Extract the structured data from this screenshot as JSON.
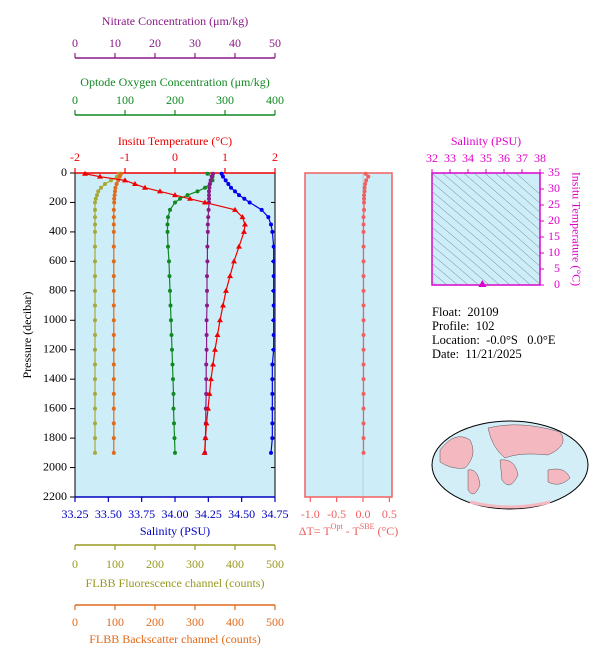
{
  "chart_data": [
    {
      "type": "profile",
      "ylabel": "Pressure (decibar)",
      "ylim": [
        0,
        2200
      ],
      "y_inverted": true,
      "yticks": [
        0,
        200,
        400,
        600,
        800,
        1000,
        1200,
        1400,
        1600,
        1800,
        2000,
        2200
      ],
      "pressure": [
        5,
        25,
        50,
        75,
        100,
        125,
        150,
        175,
        200,
        250,
        300,
        350,
        400,
        500,
        600,
        700,
        800,
        900,
        1000,
        1100,
        1200,
        1300,
        1400,
        1500,
        1600,
        1700,
        1800,
        1900
      ],
      "axes": [
        {
          "label": "Insitu Temperature (°C)",
          "color": "#ee0000",
          "xlim": [
            -2,
            2
          ],
          "xticks": [
            -2,
            -1,
            0,
            1,
            2
          ]
        },
        {
          "label": "Salinity (PSU)",
          "color": "#0000c0",
          "xlim": [
            33.25,
            34.75
          ],
          "xticks": [
            {
              "value": 33.25,
              "label": "33.25"
            },
            {
              "value": 33.5,
              "label": "33.50"
            },
            {
              "value": 33.75,
              "label": "33.75"
            },
            {
              "value": 34.0,
              "label": "34.00"
            },
            {
              "value": 34.25,
              "label": "34.25"
            },
            {
              "value": 34.5,
              "label": "34.50"
            },
            {
              "value": 34.75,
              "label": "34.75"
            }
          ]
        },
        {
          "label": "Nitrate Concentration (μm/kg)",
          "color": "#8b1a89",
          "xlim": [
            0,
            50
          ],
          "xticks": [
            0,
            10,
            20,
            30,
            40,
            50
          ]
        },
        {
          "label": "Optode Oxygen Concentration (μm/kg)",
          "color": "#118822",
          "xlim": [
            0,
            400
          ],
          "xticks": [
            0,
            100,
            200,
            300,
            400
          ]
        },
        {
          "label": "FLBB Fluorescence channel (counts)",
          "color": "#999922",
          "xlim": [
            0,
            500
          ],
          "xticks": [
            0,
            100,
            200,
            300,
            400,
            500
          ]
        },
        {
          "label": "FLBB Backscatter channel (counts)",
          "color": "#e06a1a",
          "xlim": [
            0,
            500
          ],
          "xticks": [
            0,
            100,
            200,
            300,
            400,
            500
          ]
        }
      ],
      "series": [
        {
          "axis": 4,
          "color": "#a8a838",
          "marker": "circle",
          "values": [
            110,
            105,
            90,
            75,
            65,
            58,
            55,
            52,
            50,
            50,
            50,
            50,
            50,
            50,
            50,
            50,
            50,
            50,
            50,
            50,
            50,
            50,
            50,
            50,
            50,
            50,
            50,
            50
          ]
        },
        {
          "axis": 5,
          "color": "#e06a1a",
          "marker": "circle",
          "values": [
            115,
            112,
            108,
            104,
            101,
            100,
            99,
            98,
            98,
            97,
            97,
            97,
            97,
            97,
            97,
            97,
            97,
            97,
            97,
            97,
            97,
            97,
            97,
            97,
            97,
            97,
            97,
            97
          ]
        },
        {
          "axis": 3,
          "color": "#118822",
          "marker": "circle",
          "values": [
            265,
            275,
            275,
            270,
            260,
            245,
            225,
            210,
            200,
            190,
            186,
            185,
            185,
            186,
            188,
            189,
            190,
            191,
            192,
            193,
            194,
            195,
            196,
            197,
            197,
            198,
            199,
            200
          ]
        },
        {
          "axis": 2,
          "color": "#8b1a89",
          "marker": "circle",
          "values": [
            34.5,
            34.2,
            33.9,
            33.7,
            33.6,
            33.5,
            33.5,
            33.5,
            33.5,
            33.4,
            33.3,
            33.2,
            33.2,
            33.1,
            33.1,
            33.0,
            33.0,
            33.0,
            32.9,
            32.9,
            32.9,
            32.8,
            32.8,
            32.8,
            32.7,
            32.7,
            32.6,
            32.5
          ]
        },
        {
          "axis": 1,
          "color": "#0000ee",
          "marker": "circle",
          "values": [
            34.35,
            34.36,
            34.38,
            34.4,
            34.42,
            34.45,
            34.48,
            34.52,
            34.56,
            34.65,
            34.7,
            34.72,
            34.73,
            34.74,
            34.74,
            34.74,
            34.74,
            34.74,
            34.74,
            34.74,
            34.74,
            34.73,
            34.73,
            34.73,
            34.73,
            34.73,
            34.73,
            34.72
          ]
        },
        {
          "axis": 0,
          "color": "#ee0000",
          "marker": "triangle",
          "values": [
            -1.8,
            -1.5,
            -1.0,
            -0.8,
            -0.6,
            -0.3,
            0.0,
            0.3,
            0.6,
            1.2,
            1.35,
            1.4,
            1.38,
            1.28,
            1.18,
            1.1,
            1.02,
            0.96,
            0.9,
            0.85,
            0.8,
            0.76,
            0.72,
            0.69,
            0.66,
            0.63,
            0.61,
            0.59
          ]
        }
      ]
    },
    {
      "type": "profile",
      "ylim": [
        0,
        2200
      ],
      "y_inverted": true,
      "pressure": [
        5,
        25,
        50,
        75,
        100,
        125,
        150,
        175,
        200,
        250,
        300,
        350,
        400,
        500,
        600,
        700,
        800,
        900,
        1000,
        1100,
        1200,
        1300,
        1400,
        1500,
        1600,
        1700,
        1800,
        1900
      ],
      "axes": [
        {
          "label": [
            "ΔT= T",
            "Opt",
            " - T",
            "SBE",
            " (°C)"
          ],
          "color": "#f06060",
          "xlim": [
            -1.1,
            0.55
          ],
          "xticks": [
            {
              "value": -1.0,
              "label": "-1.0"
            },
            -0.5,
            {
              "value": 0.0,
              "label": "0.0"
            },
            0.5
          ]
        }
      ],
      "series": [
        {
          "axis": 0,
          "color": "#f06060",
          "marker": "circle",
          "values": [
            0.05,
            0.1,
            0.06,
            0.04,
            0.03,
            0.03,
            0.02,
            0.02,
            0.02,
            0.02,
            0.01,
            0.01,
            0.01,
            0.01,
            0.01,
            0.01,
            0.01,
            0.01,
            0.01,
            0.01,
            0.01,
            0.01,
            0.01,
            0.01,
            0.01,
            0.01,
            0.01,
            0.01
          ]
        }
      ]
    },
    {
      "type": "scatter",
      "title": "Salinity (PSU)",
      "ylabel": "Insitu Temperature (°C)",
      "color": "#dd00cc",
      "xlim": [
        32,
        38
      ],
      "xticks": [
        32,
        33,
        34,
        35,
        36,
        37,
        38
      ],
      "ylim": [
        0,
        35
      ],
      "yticks": [
        0,
        5,
        10,
        15,
        20,
        25,
        30,
        35
      ],
      "x": [
        34.8
      ],
      "values": [
        0.3
      ]
    }
  ],
  "info": [
    "Float:  20109",
    "Profile:  102",
    "Location:  -0.0°S   0.0°E",
    "Date:  11/21/2025"
  ]
}
